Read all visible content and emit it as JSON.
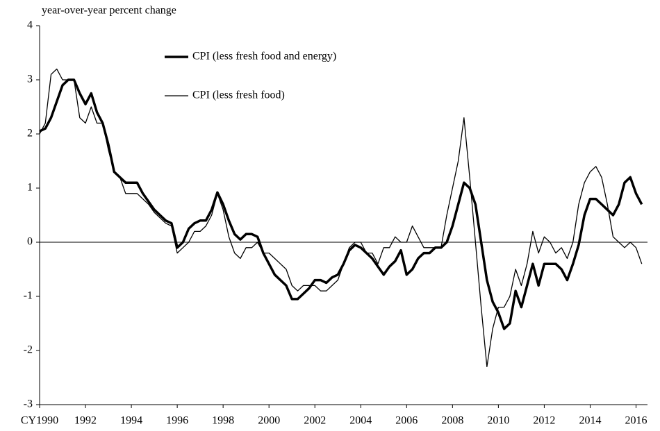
{
  "chart_data": {
    "type": "line",
    "y_label": "year-over-year percent change",
    "x": [
      1990,
      1990.25,
      1990.5,
      1990.75,
      1991,
      1991.25,
      1991.5,
      1991.75,
      1992,
      1992.25,
      1992.5,
      1992.75,
      1993,
      1993.25,
      1993.5,
      1993.75,
      1994,
      1994.25,
      1994.5,
      1994.75,
      1995,
      1995.25,
      1995.5,
      1995.75,
      1996,
      1996.25,
      1996.5,
      1996.75,
      1997,
      1997.25,
      1997.5,
      1997.75,
      1998,
      1998.25,
      1998.5,
      1998.75,
      1999,
      1999.25,
      1999.5,
      1999.75,
      2000,
      2000.25,
      2000.5,
      2000.75,
      2001,
      2001.25,
      2001.5,
      2001.75,
      2002,
      2002.25,
      2002.5,
      2002.75,
      2003,
      2003.25,
      2003.5,
      2003.75,
      2004,
      2004.25,
      2004.5,
      2004.75,
      2005,
      2005.25,
      2005.5,
      2005.75,
      2006,
      2006.25,
      2006.5,
      2006.75,
      2007,
      2007.25,
      2007.5,
      2007.75,
      2008,
      2008.25,
      2008.5,
      2008.75,
      2009,
      2009.25,
      2009.5,
      2009.75,
      2010,
      2010.25,
      2010.5,
      2010.75,
      2011,
      2011.25,
      2011.5,
      2011.75,
      2012,
      2012.25,
      2012.5,
      2012.75,
      2013,
      2013.25,
      2013.5,
      2013.75,
      2014,
      2014.25,
      2014.5,
      2014.75,
      2015,
      2015.25,
      2015.5,
      2015.75,
      2016,
      2016.25
    ],
    "series": [
      {
        "name": "CPI (less fresh food and energy)",
        "color": "#000000",
        "line_width": 3.5,
        "values": [
          2.05,
          2.1,
          2.3,
          2.6,
          2.9,
          3.0,
          3.0,
          2.75,
          2.55,
          2.75,
          2.4,
          2.2,
          1.8,
          1.3,
          1.2,
          1.1,
          1.1,
          1.1,
          0.9,
          0.75,
          0.6,
          0.5,
          0.4,
          0.35,
          -0.1,
          0.0,
          0.25,
          0.35,
          0.4,
          0.4,
          0.6,
          0.92,
          0.7,
          0.4,
          0.15,
          0.05,
          0.15,
          0.15,
          0.1,
          -0.2,
          -0.4,
          -0.6,
          -0.7,
          -0.8,
          -1.05,
          -1.05,
          -0.95,
          -0.85,
          -0.7,
          -0.7,
          -0.75,
          -0.65,
          -0.6,
          -0.4,
          -0.15,
          -0.05,
          -0.1,
          -0.2,
          -0.3,
          -0.45,
          -0.6,
          -0.45,
          -0.35,
          -0.15,
          -0.6,
          -0.5,
          -0.3,
          -0.2,
          -0.2,
          -0.1,
          -0.1,
          0.0,
          0.3,
          0.7,
          1.1,
          1.0,
          0.7,
          0.0,
          -0.7,
          -1.1,
          -1.3,
          -1.6,
          -1.5,
          -0.9,
          -1.2,
          -0.8,
          -0.4,
          -0.8,
          -0.4,
          -0.4,
          -0.4,
          -0.5,
          -0.7,
          -0.4,
          -0.05,
          0.5,
          0.8,
          0.8,
          0.7,
          0.6,
          0.5,
          0.7,
          1.1,
          1.2,
          0.9,
          0.7
        ]
      },
      {
        "name": "CPI (less fresh food)",
        "color": "#000000",
        "line_width": 1.3,
        "values": [
          2.0,
          2.2,
          3.1,
          3.2,
          3.0,
          3.0,
          3.0,
          2.3,
          2.2,
          2.5,
          2.2,
          2.2,
          1.7,
          1.3,
          1.2,
          0.9,
          0.9,
          0.9,
          0.8,
          0.7,
          0.55,
          0.45,
          0.35,
          0.3,
          -0.2,
          -0.1,
          0.0,
          0.2,
          0.2,
          0.3,
          0.5,
          0.9,
          0.6,
          0.1,
          -0.2,
          -0.3,
          -0.1,
          -0.1,
          0.0,
          -0.2,
          -0.2,
          -0.3,
          -0.4,
          -0.5,
          -0.8,
          -0.9,
          -0.8,
          -0.8,
          -0.8,
          -0.9,
          -0.9,
          -0.8,
          -0.7,
          -0.4,
          -0.1,
          0.0,
          0.0,
          -0.2,
          -0.2,
          -0.4,
          -0.1,
          -0.1,
          0.1,
          0.0,
          0.0,
          0.3,
          0.1,
          -0.1,
          -0.1,
          -0.1,
          -0.1,
          0.5,
          1.0,
          1.5,
          2.3,
          1.2,
          0.0,
          -1.2,
          -2.3,
          -1.6,
          -1.2,
          -1.2,
          -1.0,
          -0.5,
          -0.8,
          -0.4,
          0.2,
          -0.2,
          0.1,
          0.0,
          -0.2,
          -0.1,
          -0.3,
          0.0,
          0.7,
          1.1,
          1.3,
          1.4,
          1.2,
          0.7,
          0.1,
          0.0,
          -0.1,
          0.0,
          -0.1,
          -0.4
        ]
      }
    ],
    "xlim": [
      1990,
      2016.5
    ],
    "xticks": [
      {
        "value": 1990,
        "label": "CY1990"
      },
      1992,
      1994,
      1996,
      1998,
      2000,
      2002,
      2004,
      2006,
      2008,
      2010,
      2012,
      2014,
      2016
    ],
    "ylim": [
      -3,
      4
    ],
    "yticks": [
      -3,
      -2,
      -1,
      0,
      1,
      2,
      3,
      4
    ],
    "zero_line": true,
    "legend": "top-left"
  }
}
